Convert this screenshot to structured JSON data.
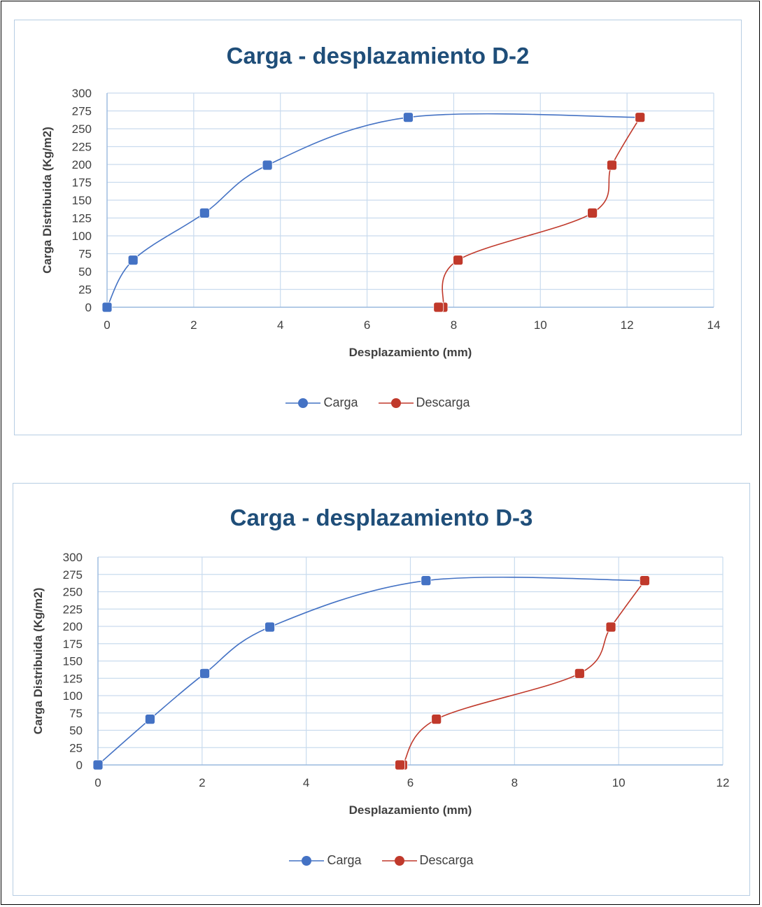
{
  "chart_data": [
    {
      "type": "scatter",
      "title": "Carga - desplazamiento D-2",
      "xlabel": "Desplazamiento (mm)",
      "ylabel": "Carga Distribuida (Kg/m2)",
      "xlim": [
        0,
        14
      ],
      "ylim": [
        0,
        300
      ],
      "x_ticks": [
        "0",
        "2",
        "4",
        "6",
        "8",
        "10",
        "12",
        "14"
      ],
      "y_ticks": [
        "0",
        "25",
        "50",
        "75",
        "100",
        "125",
        "150",
        "175",
        "200",
        "225",
        "250",
        "275",
        "300"
      ],
      "grid": true,
      "smooth_lines": true,
      "legend_position": "bottom",
      "series": [
        {
          "name": "Carga",
          "color": "#4472c4",
          "x": [
            0,
            0.6,
            2.25,
            3.7,
            6.95,
            12.3
          ],
          "y": [
            0,
            66,
            132,
            199,
            266,
            266
          ]
        },
        {
          "name": "Descarga",
          "color": "#c0392b",
          "x": [
            12.3,
            11.65,
            11.2,
            8.1,
            7.75,
            7.65
          ],
          "y": [
            266,
            199,
            132,
            66,
            0,
            0
          ]
        }
      ]
    },
    {
      "type": "scatter",
      "title": "Carga - desplazamiento D-3",
      "xlabel": "Desplazamiento (mm)",
      "ylabel": "Carga Distribuida (Kg/m2)",
      "xlim": [
        0,
        12
      ],
      "ylim": [
        0,
        300
      ],
      "x_ticks": [
        "0",
        "2",
        "4",
        "6",
        "8",
        "10",
        "12"
      ],
      "y_ticks": [
        "0",
        "25",
        "50",
        "75",
        "100",
        "125",
        "150",
        "175",
        "200",
        "225",
        "250",
        "275",
        "300"
      ],
      "grid": true,
      "smooth_lines": true,
      "legend_position": "bottom",
      "series": [
        {
          "name": "Carga",
          "color": "#4472c4",
          "x": [
            0,
            1.0,
            2.05,
            3.3,
            6.3,
            10.5
          ],
          "y": [
            0,
            66,
            132,
            199,
            266,
            266
          ]
        },
        {
          "name": "Descarga",
          "color": "#c0392b",
          "x": [
            10.5,
            9.85,
            9.25,
            6.5,
            5.85,
            5.8
          ],
          "y": [
            266,
            199,
            132,
            66,
            0,
            0
          ]
        }
      ]
    }
  ]
}
